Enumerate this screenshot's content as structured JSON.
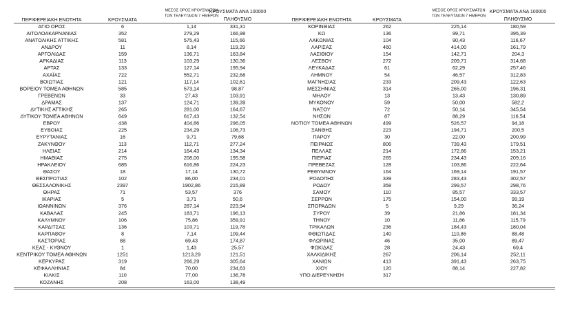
{
  "tables": {
    "left": {
      "header": {
        "region": "ΠΕΡΙΦΕΡΕΙΑΚΗ ΕΝΟΤΗΤΑ",
        "cases": "ΚΡΟΥΣΜΑΤΑ",
        "mean": [
          "ΜΕΣΟΣ ΟΡΟΣ ΚΡΟΥΣΜΑΤΩΝ",
          "ΤΩΝ ΤΕΛΕΥΤΑΙΩΝ 7 ΗΜΕΡΩΝ"
        ],
        "per100k": [
          "ΚΡΟΥΣΜΑΤΑ ΑΝΑ 100000",
          "ΠΛΗΘΥΣΜΟ"
        ]
      },
      "rows": [
        [
          "ΑΓΙΟ ΟΡΟΣ",
          "6",
          "1,14",
          "331,31"
        ],
        [
          "ΑΙΤΩΛΟΑΚΑΡΝΑΝΙΑΣ",
          "352",
          "279,29",
          "166,98"
        ],
        [
          "ΑΝΑΤΟΛΙΚΗΣ ΑΤΤΙΚΗΣ",
          "581",
          "575,43",
          "115,66"
        ],
        [
          "ΑΝΔΡΟΥ",
          "11",
          "8,14",
          "119,29"
        ],
        [
          "ΑΡΓΟΛΙΔΑΣ",
          "159",
          "136,71",
          "163,84"
        ],
        [
          "ΑΡΚΑΔΙΑΣ",
          "113",
          "103,29",
          "130,36"
        ],
        [
          "ΑΡΤΑΣ",
          "133",
          "127,14",
          "195,94"
        ],
        [
          "ΑΧΑΪΑΣ",
          "722",
          "552,71",
          "232,68"
        ],
        [
          "ΒΟΙΩΤΙΑΣ",
          "121",
          "117,14",
          "102,61"
        ],
        [
          "ΒΟΡΕΙΟΥ ΤΟΜΕΑ ΑΘΗΝΩΝ",
          "585",
          "573,14",
          "98,87"
        ],
        [
          "ΓΡΕΒΕΝΩΝ",
          "33",
          "27,43",
          "103,91"
        ],
        [
          "ΔΡΑΜΑΣ",
          "137",
          "124,71",
          "139,39"
        ],
        [
          "ΔΥΤΙΚΗΣ ΑΤΤΙΚΗΣ",
          "265",
          "281,00",
          "164,67"
        ],
        [
          "ΔΥΤΙΚΟΥ ΤΟΜΕΑ ΑΘΗΝΩΝ",
          "649",
          "617,43",
          "132,54"
        ],
        [
          "ΕΒΡΟΥ",
          "438",
          "404,86",
          "296,05"
        ],
        [
          "ΕΥΒΟΙΑΣ",
          "225",
          "234,29",
          "106,73"
        ],
        [
          "ΕΥΡΥΤΑΝΙΑΣ",
          "16",
          "9,71",
          "79,68"
        ],
        [
          "ΖΑΚΥΝΘΟΥ",
          "113",
          "112,71",
          "277,24"
        ],
        [
          "ΗΛΕΙΑΣ",
          "214",
          "164,43",
          "134,34"
        ],
        [
          "ΗΜΑΘΙΑΣ",
          "275",
          "208,00",
          "195,58"
        ],
        [
          "ΗΡΑΚΛΕΙΟΥ",
          "685",
          "616,86",
          "224,23"
        ],
        [
          "ΘΑΣΟΥ",
          "18",
          "17,14",
          "130,72"
        ],
        [
          "ΘΕΣΠΡΩΤΙΑΣ",
          "102",
          "86,00",
          "234,01"
        ],
        [
          "ΘΕΣΣΑΛΟΝΙΚΗΣ",
          "2397",
          "1902,86",
          "215,89"
        ],
        [
          "ΘΗΡΑΣ",
          "71",
          "53,57",
          "376"
        ],
        [
          "ΙΚΑΡΙΑΣ",
          "5",
          "3,71",
          "50,6"
        ],
        [
          "ΙΩΑΝΝΙΝΩΝ",
          "376",
          "287,14",
          "223,94"
        ],
        [
          "ΚΑΒΑΛΑΣ",
          "245",
          "183,71",
          "196,13"
        ],
        [
          "ΚΑΛΥΜΝΟΥ",
          "106",
          "75,86",
          "359,91"
        ],
        [
          "ΚΑΡΔΙΤΣΑΣ",
          "136",
          "103,71",
          "119,78"
        ],
        [
          "ΚΑΡΠΑΘΟΥ",
          "8",
          "7,14",
          "109,44"
        ],
        [
          "ΚΑΣΤΟΡΙΑΣ",
          "88",
          "69,43",
          "174,87"
        ],
        [
          "ΚΕΑΣ - ΚΥΘΝΟΥ",
          "1",
          "1,43",
          "25,57"
        ],
        [
          "ΚΕΝΤΡΙΚΟΥ ΤΟΜΕΑ ΑΘΗΝΩΝ",
          "1251",
          "1213,29",
          "121,51"
        ],
        [
          "ΚΕΡΚΥΡΑΣ",
          "319",
          "266,29",
          "305,64"
        ],
        [
          "ΚΕΦΑΛΛΗΝΙΑΣ",
          "84",
          "70,00",
          "234,63"
        ],
        [
          "ΚΙΛΚΙΣ",
          "110",
          "77,00",
          "136,78"
        ],
        [
          "ΚΟΖΑΝΗΣ",
          "208",
          "163,00",
          "138,49"
        ]
      ]
    },
    "right": {
      "header": {
        "region": "ΠΕΡΙΦΕΡΕΙΑΚΗ ΕΝΟΤΗΤΑ",
        "cases": "ΚΡΟΥΣΜΑΤΑ",
        "mean": [
          "ΜΕΣΟΣ ΟΡΟΣ ΚΡΟΥΣΜΑΤΩΝ",
          "ΤΩΝ ΤΕΛΕΥΤΑΙΩΝ 7 ΗΜΕΡΩΝ"
        ],
        "per100k": [
          "ΚΡΟΥΣΜΑΤΑ ΑΝΑ 100000",
          "ΠΛΗΘΥΣΜΟ"
        ]
      },
      "rows": [
        [
          "ΚΟΡΙΝΘΙΑΣ",
          "262",
          "225,14",
          "180,59"
        ],
        [
          "ΚΩ",
          "136",
          "99,71",
          "395,39"
        ],
        [
          "ΛΑΚΩΝΙΑΣ",
          "104",
          "90,43",
          "116,67"
        ],
        [
          "ΛΑΡΙΣΑΣ",
          "460",
          "414,00",
          "161,79"
        ],
        [
          "ΛΑΣΙΘΙΟΥ",
          "154",
          "142,71",
          "204,3"
        ],
        [
          "ΛΕΣΒΟΥ",
          "272",
          "209,71",
          "314,68"
        ],
        [
          "ΛΕΥΚΑΔΑΣ",
          "61",
          "62,29",
          "257,46"
        ],
        [
          "ΛΗΜΝΟΥ",
          "54",
          "46,57",
          "312,83"
        ],
        [
          "ΜΑΓΝΗΣΙΑΣ",
          "233",
          "209,43",
          "122,63"
        ],
        [
          "ΜΕΣΣΗΝΙΑΣ",
          "314",
          "265,00",
          "196,31"
        ],
        [
          "ΜΗΛΟΥ",
          "13",
          "13,43",
          "130,89"
        ],
        [
          "ΜΥΚΟΝΟΥ",
          "59",
          "50,00",
          "582,2"
        ],
        [
          "ΝΑΞΟΥ",
          "72",
          "50,14",
          "345,54"
        ],
        [
          "ΝΗΣΩΝ",
          "87",
          "88,29",
          "116,54"
        ],
        [
          "ΝΟΤΙΟΥ ΤΟΜΕΑ ΑΘΗΝΩΝ",
          "499",
          "526,57",
          "94,18"
        ],
        [
          "ΞΑΝΘΗΣ",
          "223",
          "194,71",
          "200,5"
        ],
        [
          "ΠΑΡΟΥ",
          "30",
          "22,00",
          "200,99"
        ],
        [
          "ΠΕΙΡΑΙΩΣ",
          "806",
          "739,43",
          "179,51"
        ],
        [
          "ΠΕΛΛΑΣ",
          "214",
          "172,86",
          "153,21"
        ],
        [
          "ΠΙΕΡΙΑΣ",
          "265",
          "234,43",
          "209,16"
        ],
        [
          "ΠΡΕΒΕΖΑΣ",
          "128",
          "103,86",
          "222,64"
        ],
        [
          "ΡΕΘΥΜΝΟΥ",
          "164",
          "169,14",
          "191,57"
        ],
        [
          "ΡΟΔΟΠΗΣ",
          "339",
          "283,43",
          "302,57"
        ],
        [
          "ΡΟΔΟΥ",
          "358",
          "299,57",
          "298,76"
        ],
        [
          "ΣΑΜΟΥ",
          "110",
          "85,57",
          "333,57"
        ],
        [
          "ΣΕΡΡΩΝ",
          "175",
          "154,00",
          "99,19"
        ],
        [
          "ΣΠΟΡΑΔΩΝ",
          "5",
          "9,29",
          "36,24"
        ],
        [
          "ΣΥΡΟΥ",
          "39",
          "21,86",
          "181,34"
        ],
        [
          "ΤΗΝΟΥ",
          "10",
          "11,86",
          "115,79"
        ],
        [
          "ΤΡΙΚΑΛΩΝ",
          "236",
          "184,43",
          "180,04"
        ],
        [
          "ΦΘΙΩΤΙΔΑΣ",
          "140",
          "110,86",
          "88,48"
        ],
        [
          "ΦΛΩΡΙΝΑΣ",
          "46",
          "35,00",
          "89,47"
        ],
        [
          "ΦΩΚΙΔΑΣ",
          "28",
          "24,43",
          "69,4"
        ],
        [
          "ΧΑΛΚΙΔΙΚΗΣ",
          "267",
          "206,14",
          "252,11"
        ],
        [
          "ΧΑΝΙΩΝ",
          "413",
          "391,43",
          "263,75"
        ],
        [
          "ΧΙΟΥ",
          "120",
          "88,14",
          "227,82"
        ],
        [
          "ΥΠΟ ΔΙΕΡΕΥΝΗΣΗ",
          "317"
        ]
      ]
    }
  }
}
